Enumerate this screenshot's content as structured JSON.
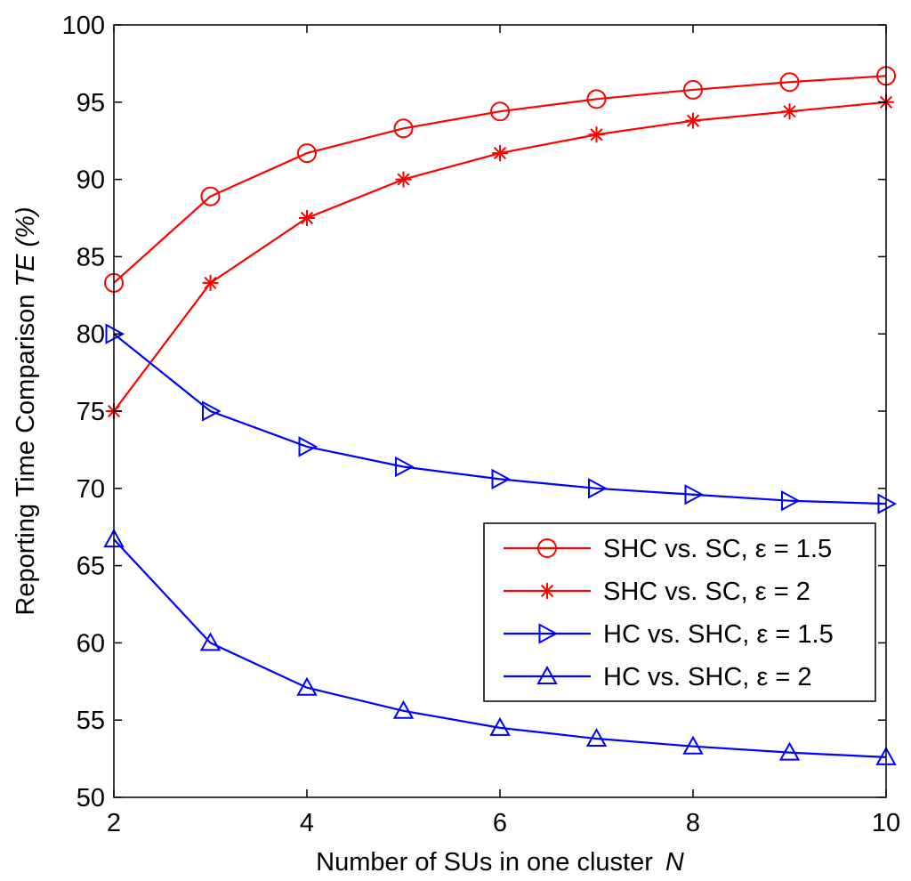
{
  "chart_data": {
    "type": "line",
    "title": "",
    "xlabel": "Number of SUs in one cluster",
    "xlabel_var": "N",
    "ylabel": "Reporting Time Comparison",
    "ylabel_var": "TE",
    "ylabel_unit": "(%)",
    "xlim": [
      2,
      10
    ],
    "ylim": [
      50,
      100
    ],
    "xticks": [
      2,
      4,
      6,
      8,
      10
    ],
    "yticks": [
      50,
      55,
      60,
      65,
      70,
      75,
      80,
      85,
      90,
      95,
      100
    ],
    "grid": false,
    "legend_position": "right-lower",
    "x": [
      2,
      3,
      4,
      5,
      6,
      7,
      8,
      9,
      10
    ],
    "series": [
      {
        "name": "SHC vs. SC, ε = 1.5",
        "color": "#ff0000",
        "marker": "circle",
        "values": [
          83.3,
          88.9,
          91.7,
          93.3,
          94.4,
          95.2,
          95.8,
          96.3,
          96.7
        ]
      },
      {
        "name": "SHC vs. SC, ε = 2",
        "color": "#ff0000",
        "marker": "asterisk",
        "values": [
          75.0,
          83.3,
          87.5,
          90.0,
          91.7,
          92.9,
          93.8,
          94.4,
          95.0
        ]
      },
      {
        "name": "HC vs. SHC, ε = 1.5",
        "color": "#0000ff",
        "marker": "triangle-right",
        "values": [
          80.0,
          75.0,
          72.7,
          71.4,
          70.6,
          70.0,
          69.6,
          69.2,
          69.0
        ]
      },
      {
        "name": "HC vs. SHC, ε = 2",
        "color": "#0000ff",
        "marker": "triangle-up",
        "values": [
          66.7,
          60.0,
          57.1,
          55.6,
          54.5,
          53.8,
          53.3,
          52.9,
          52.6
        ]
      }
    ]
  }
}
